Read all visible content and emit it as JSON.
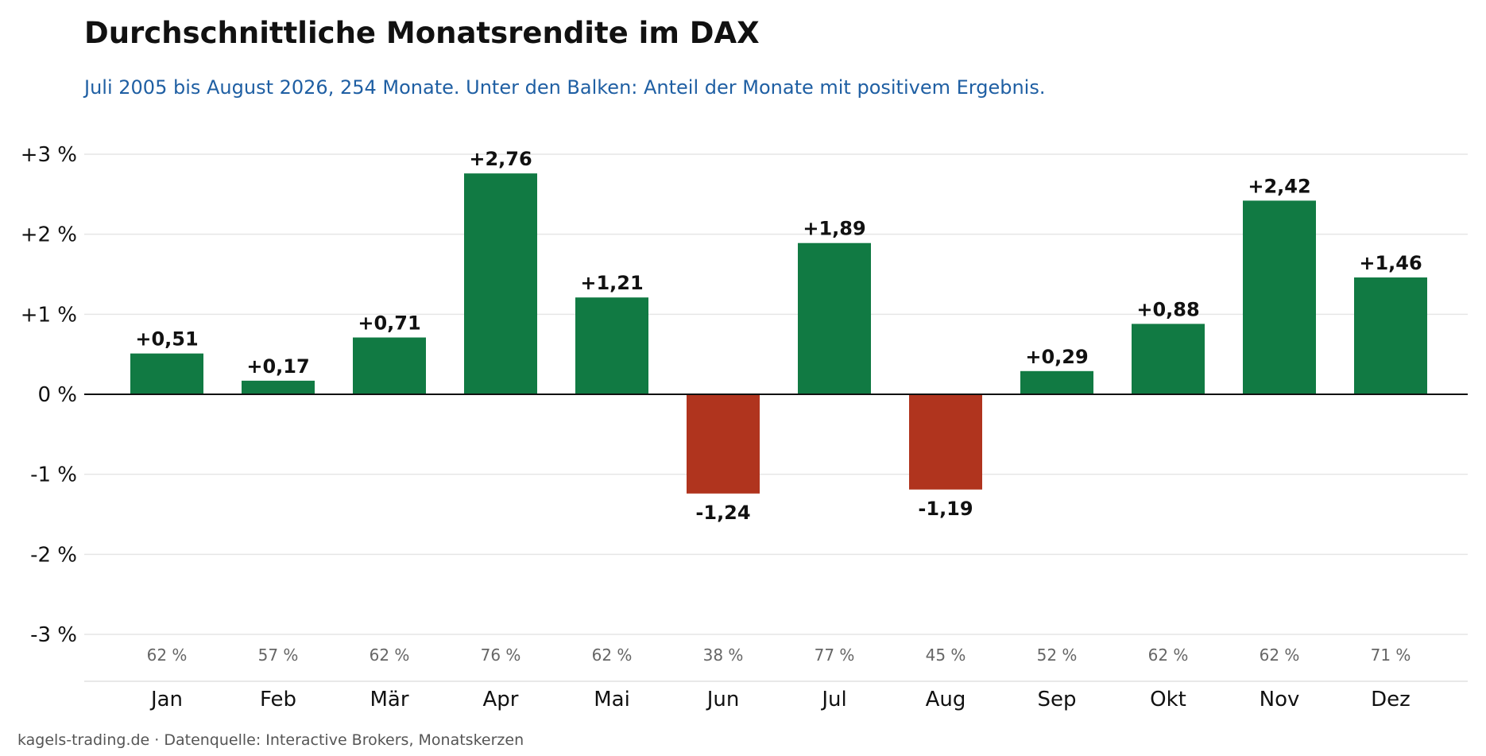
{
  "colors": {
    "positive": "#117a43",
    "negative": "#b0341e",
    "subtitle": "#1f5fa3",
    "grid": "#e6e6e6",
    "share_text": "#666666"
  },
  "footer": "kagels-trading.de · Datenquelle: Interactive Brokers, Monatskerzen",
  "chart_data": {
    "type": "bar",
    "title": "Durchschnittliche Monatsrendite im DAX",
    "subtitle": "Juli 2005 bis August 2026, 254 Monate. Unter den Balken: Anteil der Monate mit positivem Ergebnis.",
    "xlabel": "",
    "ylabel": "",
    "ylim": [
      -3,
      3
    ],
    "yticks": [
      3,
      2,
      1,
      0,
      -1,
      -2,
      -3
    ],
    "ytick_labels": [
      "+3 %",
      "+2 %",
      "+1 %",
      "0 %",
      "-1 %",
      "-2 %",
      "-3 %"
    ],
    "grid": true,
    "categories": [
      "Jan",
      "Feb",
      "Mär",
      "Apr",
      "Mai",
      "Jun",
      "Jul",
      "Aug",
      "Sep",
      "Okt",
      "Nov",
      "Dez"
    ],
    "values": [
      0.51,
      0.17,
      0.71,
      2.76,
      1.21,
      -1.24,
      1.89,
      -1.19,
      0.29,
      0.88,
      2.42,
      1.46
    ],
    "value_labels": [
      "+0,51",
      "+0,17",
      "+0,71",
      "+2,76",
      "+1,21",
      "-1,24",
      "+1,89",
      "-1,19",
      "+0,29",
      "+0,88",
      "+2,42",
      "+1,46"
    ],
    "positive_share_labels": [
      "62 %",
      "57 %",
      "62 %",
      "76 %",
      "62 %",
      "38 %",
      "77 %",
      "45 %",
      "52 %",
      "62 %",
      "62 %",
      "71 %"
    ]
  }
}
